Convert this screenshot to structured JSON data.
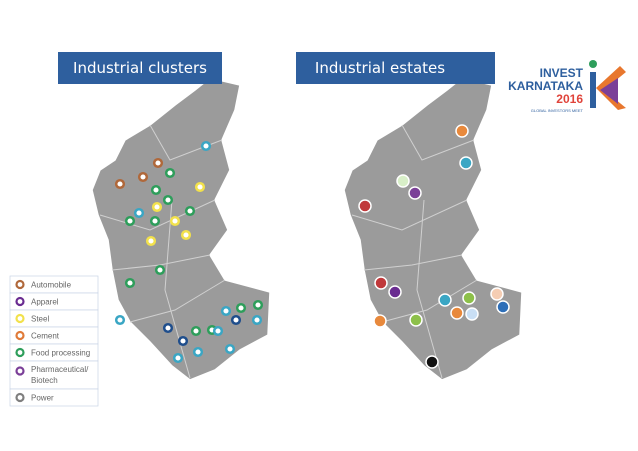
{
  "titles": {
    "left": "Industrial clusters",
    "right": "Industrial estates"
  },
  "logo": {
    "line1": "INVEST",
    "line2": "KARNATAKA",
    "year": "2016",
    "tagline": "GLOBAL INVESTORS MEET"
  },
  "legend": [
    {
      "label": "Automobile",
      "color": "#b0683a"
    },
    {
      "label": "Apparel",
      "color": "#6a2c91"
    },
    {
      "label": "Steel",
      "color": "#f2e14c"
    },
    {
      "label": "Cement",
      "color": "#e07b39"
    },
    {
      "label": "Food processing",
      "color": "#2e9e5b"
    },
    {
      "label": "Pharmaceutical/ Biotech",
      "color": "#7b3f98"
    },
    {
      "label": "Power",
      "color": "#7f7f7f"
    }
  ]
}
